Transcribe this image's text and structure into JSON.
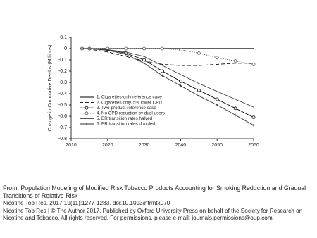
{
  "chart_data": {
    "type": "line",
    "y_label": "Change in Cumulative Deaths (Millions)",
    "x": [
      2013,
      2015,
      2020,
      2025,
      2030,
      2035,
      2040,
      2045,
      2050,
      2055,
      2060
    ],
    "xlim": [
      2010,
      2060
    ],
    "xticks": [
      2010,
      2020,
      2030,
      2040,
      2050,
      2060
    ],
    "ylim": [
      -0.8,
      0.1
    ],
    "yticks": [
      0.1,
      0,
      -0.1,
      -0.2,
      -0.3,
      -0.4,
      -0.5,
      -0.6,
      -0.7,
      -0.8
    ],
    "legend": "lower left",
    "series": [
      {
        "name": "1. Cigarettes-only reference case",
        "color": "#000000",
        "dash": "solid",
        "marker": "none",
        "values": [
          0,
          0,
          0,
          0,
          0,
          0,
          0,
          0,
          0,
          0,
          0
        ]
      },
      {
        "name": "2. Cigarettes only, 5% lower CPD",
        "color": "#000000",
        "dash": "dashed",
        "marker": "none",
        "values": [
          0,
          -0.005,
          -0.03,
          -0.07,
          -0.11,
          -0.14,
          -0.15,
          -0.15,
          -0.14,
          -0.13,
          -0.13
        ]
      },
      {
        "name": "3. Two-product reference case",
        "color": "#000000",
        "dash": "solid",
        "marker": "circle",
        "values": [
          0,
          0,
          -0.01,
          -0.04,
          -0.1,
          -0.2,
          -0.29,
          -0.37,
          -0.45,
          -0.53,
          -0.61
        ]
      },
      {
        "name": "4. No CPD reduction by dual users",
        "color": "#555555",
        "dash": "dotted",
        "marker": "circle",
        "values": [
          0,
          0,
          0,
          0,
          0,
          0,
          -0.01,
          -0.04,
          -0.08,
          -0.11,
          -0.14
        ]
      },
      {
        "name": "5. ER transition rates halved",
        "color": "#444444",
        "dash": "solid",
        "marker": "none",
        "values": [
          0,
          0,
          -0.01,
          -0.03,
          -0.07,
          -0.15,
          -0.23,
          -0.31,
          -0.38,
          -0.45,
          -0.52
        ]
      },
      {
        "name": "6. ER transition rates doubled",
        "color": "#333333",
        "dash": "solid",
        "marker": "plus",
        "values": [
          0,
          0,
          -0.015,
          -0.05,
          -0.13,
          -0.24,
          -0.33,
          -0.42,
          -0.5,
          -0.59,
          -0.68
        ]
      }
    ]
  },
  "caption": {
    "title": "From: Population Modeling of Modified Risk Tobacco Products Accounting for Smoking Reduction and Gradual Transitions of Relative Risk",
    "citation": "Nicotine Tob Res. 2017;19(11):1277-1283. doi:10.1093/ntr/ntx070",
    "copyright": "Nicotine Tob Res | © The Author 2017. Published by Oxford University Press on behalf of the Society for Research on Nicotine and Tobacco. All rights reserved. For permissions, please e-mail: journals.permissions@oup.com."
  }
}
